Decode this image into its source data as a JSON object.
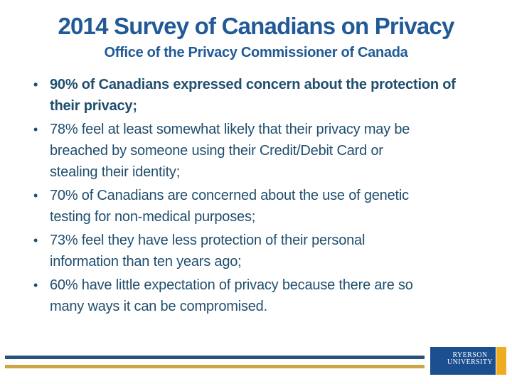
{
  "colors": {
    "title_blue": "#215A96",
    "body_blue": "#1F4E6E",
    "rule_blue": "#27547A",
    "rule_gold": "#CBA646",
    "logo_blue": "#1B4F8F",
    "logo_gold": "#F0AC21",
    "logo_text": "#FFFFFF",
    "background": "#FFFFFF"
  },
  "slide": {
    "title": "2014 Survey of Canadians on Privacy",
    "subtitle": "Office of the Privacy Commissioner of Canada",
    "bullet_glyph": "•",
    "bullets": [
      {
        "style": "bold",
        "lines": [
          "90% of Canadians expressed concern about the protection of",
          "their privacy;"
        ]
      },
      {
        "style": "regular",
        "lines": [
          "78% feel at least somewhat likely that their privacy may be",
          "breached by someone using their Credit/Debit Card or",
          "stealing their identity;"
        ]
      },
      {
        "style": "regular",
        "lines": [
          "70% of Canadians are concerned about the use of genetic",
          "testing for non-medical purposes;"
        ]
      },
      {
        "style": "regular",
        "lines": [
          "73% feel they have less protection of their personal",
          "information than ten years ago;"
        ]
      },
      {
        "style": "regular",
        "lines": [
          "60% have little expectation of privacy because there are so",
          "many ways it can be compromised."
        ]
      }
    ]
  },
  "logo": {
    "line1": "RYERSON",
    "line2": "UNIVERSITY"
  }
}
